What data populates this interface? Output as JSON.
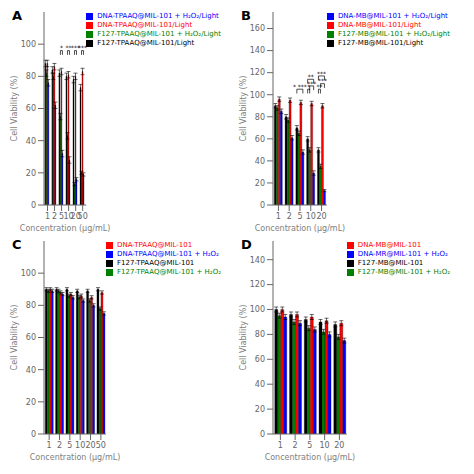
{
  "chart_data": [
    {
      "type": "bar",
      "title": "A",
      "xlabel": "Concentration (μg/mL)",
      "ylabel": "Cell Viability (%)",
      "categories": [
        "1",
        "2",
        "5",
        "10",
        "20",
        "50"
      ],
      "series": [
        {
          "name": "F127-TPAAQ@MIL-101/Light",
          "color": "#000000",
          "values": [
            88,
            84,
            82,
            80,
            78,
            73
          ],
          "errors": [
            2,
            2,
            2,
            2,
            2,
            2
          ]
        },
        {
          "name": "F127-TPAAQ@MIL-101 + H₂O₂/Light",
          "color": "#008000",
          "values": [
            82,
            80,
            55,
            43,
            13,
            20
          ],
          "errors": [
            2,
            2,
            2,
            2,
            1,
            1
          ]
        },
        {
          "name": "DNA-TPAAQ@MIL-101/Light",
          "color": "#FF0000",
          "values": [
            88,
            86,
            83,
            81,
            80,
            83
          ],
          "errors": [
            2,
            2,
            2,
            2,
            2,
            2
          ]
        },
        {
          "name": "DNA-TPAAQ@MIL-101 + H₂O₂/Light",
          "color": "#0000FF",
          "values": [
            76,
            62,
            32,
            28,
            16,
            19
          ],
          "errors": [
            2,
            2,
            2,
            2,
            1,
            1
          ]
        }
      ],
      "ylim": [
        0,
        120
      ],
      "yticks": [
        0,
        20,
        40,
        60,
        80,
        100
      ],
      "grid": false,
      "legend": "upper right",
      "annotations": [
        {
          "text": "*",
          "category": "5",
          "series": [
            "F127-TPAAQ@MIL-101 + H₂O₂/Light",
            "DNA-TPAAQ@MIL-101 + H₂O₂/Light"
          ],
          "y": 96
        },
        {
          "text": "**",
          "category": "10",
          "series": [
            "F127-TPAAQ@MIL-101 + H₂O₂/Light",
            "DNA-TPAAQ@MIL-101 + H₂O₂/Light"
          ],
          "y": 96
        },
        {
          "text": "***",
          "category": "20",
          "series": [
            "F127-TPAAQ@MIL-101 + H₂O₂/Light",
            "DNA-TPAAQ@MIL-101 + H₂O₂/Light"
          ],
          "y": 96
        },
        {
          "text": "***",
          "category": "50",
          "series": [
            "F127-TPAAQ@MIL-101 + H₂O₂/Light",
            "DNA-TPAAQ@MIL-101 + H₂O₂/Light"
          ],
          "y": 96
        }
      ]
    },
    {
      "type": "bar",
      "title": "B",
      "xlabel": "Concentration (μg/mL)",
      "ylabel": "Cell Viability (%)",
      "categories": [
        "1",
        "2",
        "5",
        "10",
        "20"
      ],
      "series": [
        {
          "name": "F127-MB@MIL-101/Light",
          "color": "#000000",
          "values": [
            90,
            80,
            70,
            60,
            50
          ],
          "errors": [
            2,
            2,
            2,
            2,
            2
          ]
        },
        {
          "name": "F127-MB@MIL-101 + H₂O₂/Light",
          "color": "#008000",
          "values": [
            88,
            77,
            65,
            50,
            35
          ],
          "errors": [
            2,
            2,
            2,
            2,
            2
          ]
        },
        {
          "name": "DNA-MB@MIL-101/Light",
          "color": "#FF0000",
          "values": [
            96,
            95,
            93,
            92,
            90
          ],
          "errors": [
            2,
            2,
            2,
            2,
            2
          ]
        },
        {
          "name": "DNA-MB@MIL-101 + H₂O₂/Light",
          "color": "#0000FF",
          "values": [
            85,
            61,
            48,
            29,
            13
          ],
          "errors": [
            2,
            2,
            2,
            2,
            1
          ]
        }
      ],
      "ylim": [
        0,
        175
      ],
      "yticks": [
        0,
        20,
        40,
        60,
        80,
        100,
        120,
        140,
        160
      ],
      "grid": false,
      "legend": "upper right",
      "annotations": [
        {
          "text": "* ***",
          "category": "5",
          "series": [
            "F127-MB@MIL-101/Light",
            "DNA-MB@MIL-101 + H₂O₂/Light"
          ],
          "y": 105
        },
        {
          "text": "*",
          "category": "10",
          "series": [
            "F127-MB@MIL-101/Light",
            "F127-MB@MIL-101 + H₂O₂/Light"
          ],
          "y": 105
        },
        {
          "text": "***",
          "category": "10",
          "series": [
            "F127-MB@MIL-101 + H₂O₂/Light",
            "DNA-MB@MIL-101 + H₂O₂/Light"
          ],
          "y": 108
        },
        {
          "text": "**",
          "category": "10",
          "series": [
            "F127-MB@MIL-101/Light",
            "DNA-MB@MIL-101 + H₂O₂/Light"
          ],
          "y": 114
        },
        {
          "text": "**",
          "category": "20",
          "series": [
            "F127-MB@MIL-101/Light",
            "F127-MB@MIL-101 + H₂O₂/Light"
          ],
          "y": 105
        },
        {
          "text": "***",
          "category": "20",
          "series": [
            "F127-MB@MIL-101 + H₂O₂/Light",
            "DNA-MB@MIL-101 + H₂O₂/Light"
          ],
          "y": 110
        },
        {
          "text": "***",
          "category": "20",
          "series": [
            "F127-MB@MIL-101/Light",
            "DNA-MB@MIL-101 + H₂O₂/Light"
          ],
          "y": 117
        }
      ]
    },
    {
      "type": "bar",
      "title": "C",
      "xlabel": "Concentration (μg/mL)",
      "ylabel": "Cell Viability (%)",
      "categories": [
        "1",
        "2",
        "5",
        "10",
        "20",
        "50"
      ],
      "series": [
        {
          "name": "F127-TPAAQ@MIL-101",
          "color": "#000000",
          "values": [
            90,
            90,
            90,
            89,
            89,
            90
          ],
          "errors": [
            1,
            1,
            1,
            1,
            1,
            1
          ]
        },
        {
          "name": "F127-TPAAQ@MIL-101 + H₂O₂",
          "color": "#008000",
          "values": [
            89,
            89,
            86,
            85,
            83,
            78
          ],
          "errors": [
            1,
            1,
            1,
            1,
            1,
            1
          ]
        },
        {
          "name": "DNA-TPAAQ@MIL-101",
          "color": "#FF0000",
          "values": [
            90,
            88,
            87,
            86,
            85,
            88
          ],
          "errors": [
            1,
            1,
            1,
            1,
            1,
            1
          ]
        },
        {
          "name": "DNA-TPAAQ@MIL-101 + H₂O₂",
          "color": "#0000FF",
          "values": [
            89,
            87,
            85,
            83,
            80,
            75
          ],
          "errors": [
            1,
            1,
            1,
            1,
            1,
            1
          ]
        }
      ],
      "ylim": [
        0,
        120
      ],
      "yticks": [
        0,
        20,
        40,
        60,
        80,
        100
      ],
      "grid": false,
      "legend": "upper right",
      "annotations": []
    },
    {
      "type": "bar",
      "title": "D",
      "xlabel": "Concentration (μg/mL)",
      "ylabel": "Cell Viability (%)",
      "categories": [
        "1",
        "2",
        "5",
        "10",
        "20"
      ],
      "series": [
        {
          "name": "F127-MB@MIL-101",
          "color": "#000000",
          "values": [
            100,
            96,
            92,
            90,
            88
          ],
          "errors": [
            2,
            2,
            2,
            2,
            2
          ]
        },
        {
          "name": "F127-MB@MIL-101 + H₂O₂",
          "color": "#008000",
          "values": [
            95,
            90,
            85,
            82,
            78
          ],
          "errors": [
            2,
            2,
            2,
            2,
            2
          ]
        },
        {
          "name": "DNA-MB@MIL-101",
          "color": "#FF0000",
          "values": [
            100,
            96,
            94,
            91,
            89
          ],
          "errors": [
            2,
            2,
            2,
            2,
            2
          ]
        },
        {
          "name": "DNA-MR@MIL-101 + H₂O₂",
          "color": "#0000FF",
          "values": [
            94,
            89,
            84,
            80,
            75
          ],
          "errors": [
            2,
            2,
            2,
            2,
            2
          ]
        }
      ],
      "ylim": [
        0,
        155
      ],
      "yticks": [
        0,
        20,
        40,
        60,
        80,
        100,
        120,
        140
      ],
      "grid": false,
      "legend": "upper right",
      "annotations": []
    }
  ]
}
